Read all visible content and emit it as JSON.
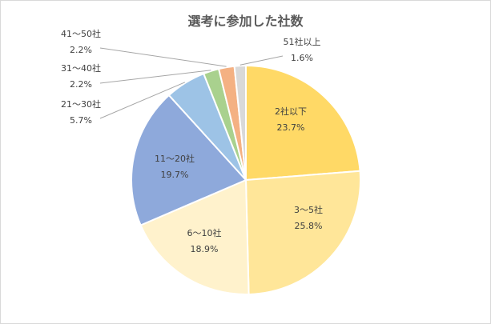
{
  "chart_data": {
    "type": "pie",
    "title": "選考に参加した社数",
    "slices": [
      {
        "label": "2社以下",
        "value": 23.7,
        "value_label": "23.7%",
        "color": "#FFD966"
      },
      {
        "label": "3～5社",
        "value": 25.8,
        "value_label": "25.8%",
        "color": "#FFE699"
      },
      {
        "label": "6～10社",
        "value": 18.9,
        "value_label": "18.9%",
        "color": "#FFF2CC"
      },
      {
        "label": "11～20社",
        "value": 19.7,
        "value_label": "19.7%",
        "color": "#8EA9DB"
      },
      {
        "label": "21～30社",
        "value": 5.7,
        "value_label": "5.7%",
        "color": "#9DC3E6"
      },
      {
        "label": "31～40社",
        "value": 2.2,
        "value_label": "2.2%",
        "color": "#A9D18E"
      },
      {
        "label": "41～50社",
        "value": 2.2,
        "value_label": "2.2%",
        "color": "#F4B183"
      },
      {
        "label": "51社以上",
        "value": 1.6,
        "value_label": "1.6%",
        "color": "#D9D9D9"
      }
    ]
  }
}
